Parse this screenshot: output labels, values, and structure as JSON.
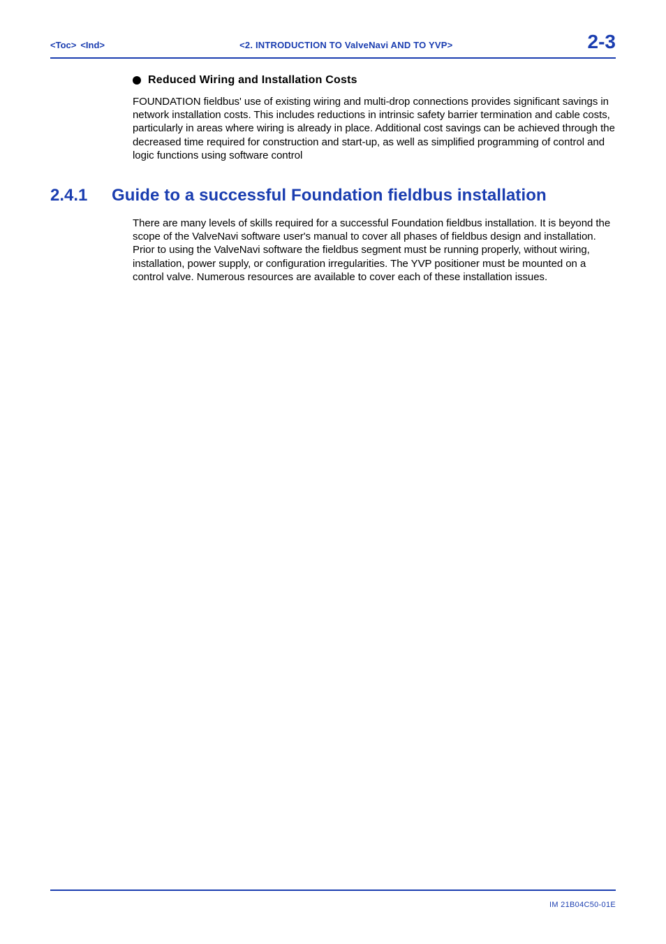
{
  "header": {
    "toc": "<Toc>",
    "ind": "<Ind>",
    "chapter_label": "<2.  INTRODUCTION TO ValveNavi  AND TO YVP>",
    "page_number": "2-3"
  },
  "bullet_section": {
    "heading": "Reduced Wiring and Installation Costs",
    "body": "FOUNDATION fieldbus' use of existing wiring and multi-drop connections provides significant savings in network installation costs.  This includes reductions in intrinsic safety barrier termination and cable costs, particularly in areas where wiring is already in place.  Additional cost savings can be achieved through the decreased time required for construction and start-up, as well as simplified programming of control and logic functions using software control"
  },
  "section": {
    "number": "2.4.1",
    "title": "Guide to a successful Foundation fieldbus installation",
    "body": "There are many levels of skills required for a successful Foundation fieldbus installation.  It is beyond the scope of the ValveNavi software user's manual to cover all phases of fieldbus design and installation.  Prior to using the ValveNavi software the fieldbus segment must be running properly, without wiring, installation, power supply, or configuration irregularities.  The YVP positioner must be mounted on a control valve.  Numerous resources are available to cover each of these installation issues."
  },
  "footer": {
    "doc_id": "IM 21B04C50-01E"
  },
  "colors": {
    "link_blue": "#1a3db0",
    "text_black": "#000000",
    "background": "#ffffff"
  }
}
